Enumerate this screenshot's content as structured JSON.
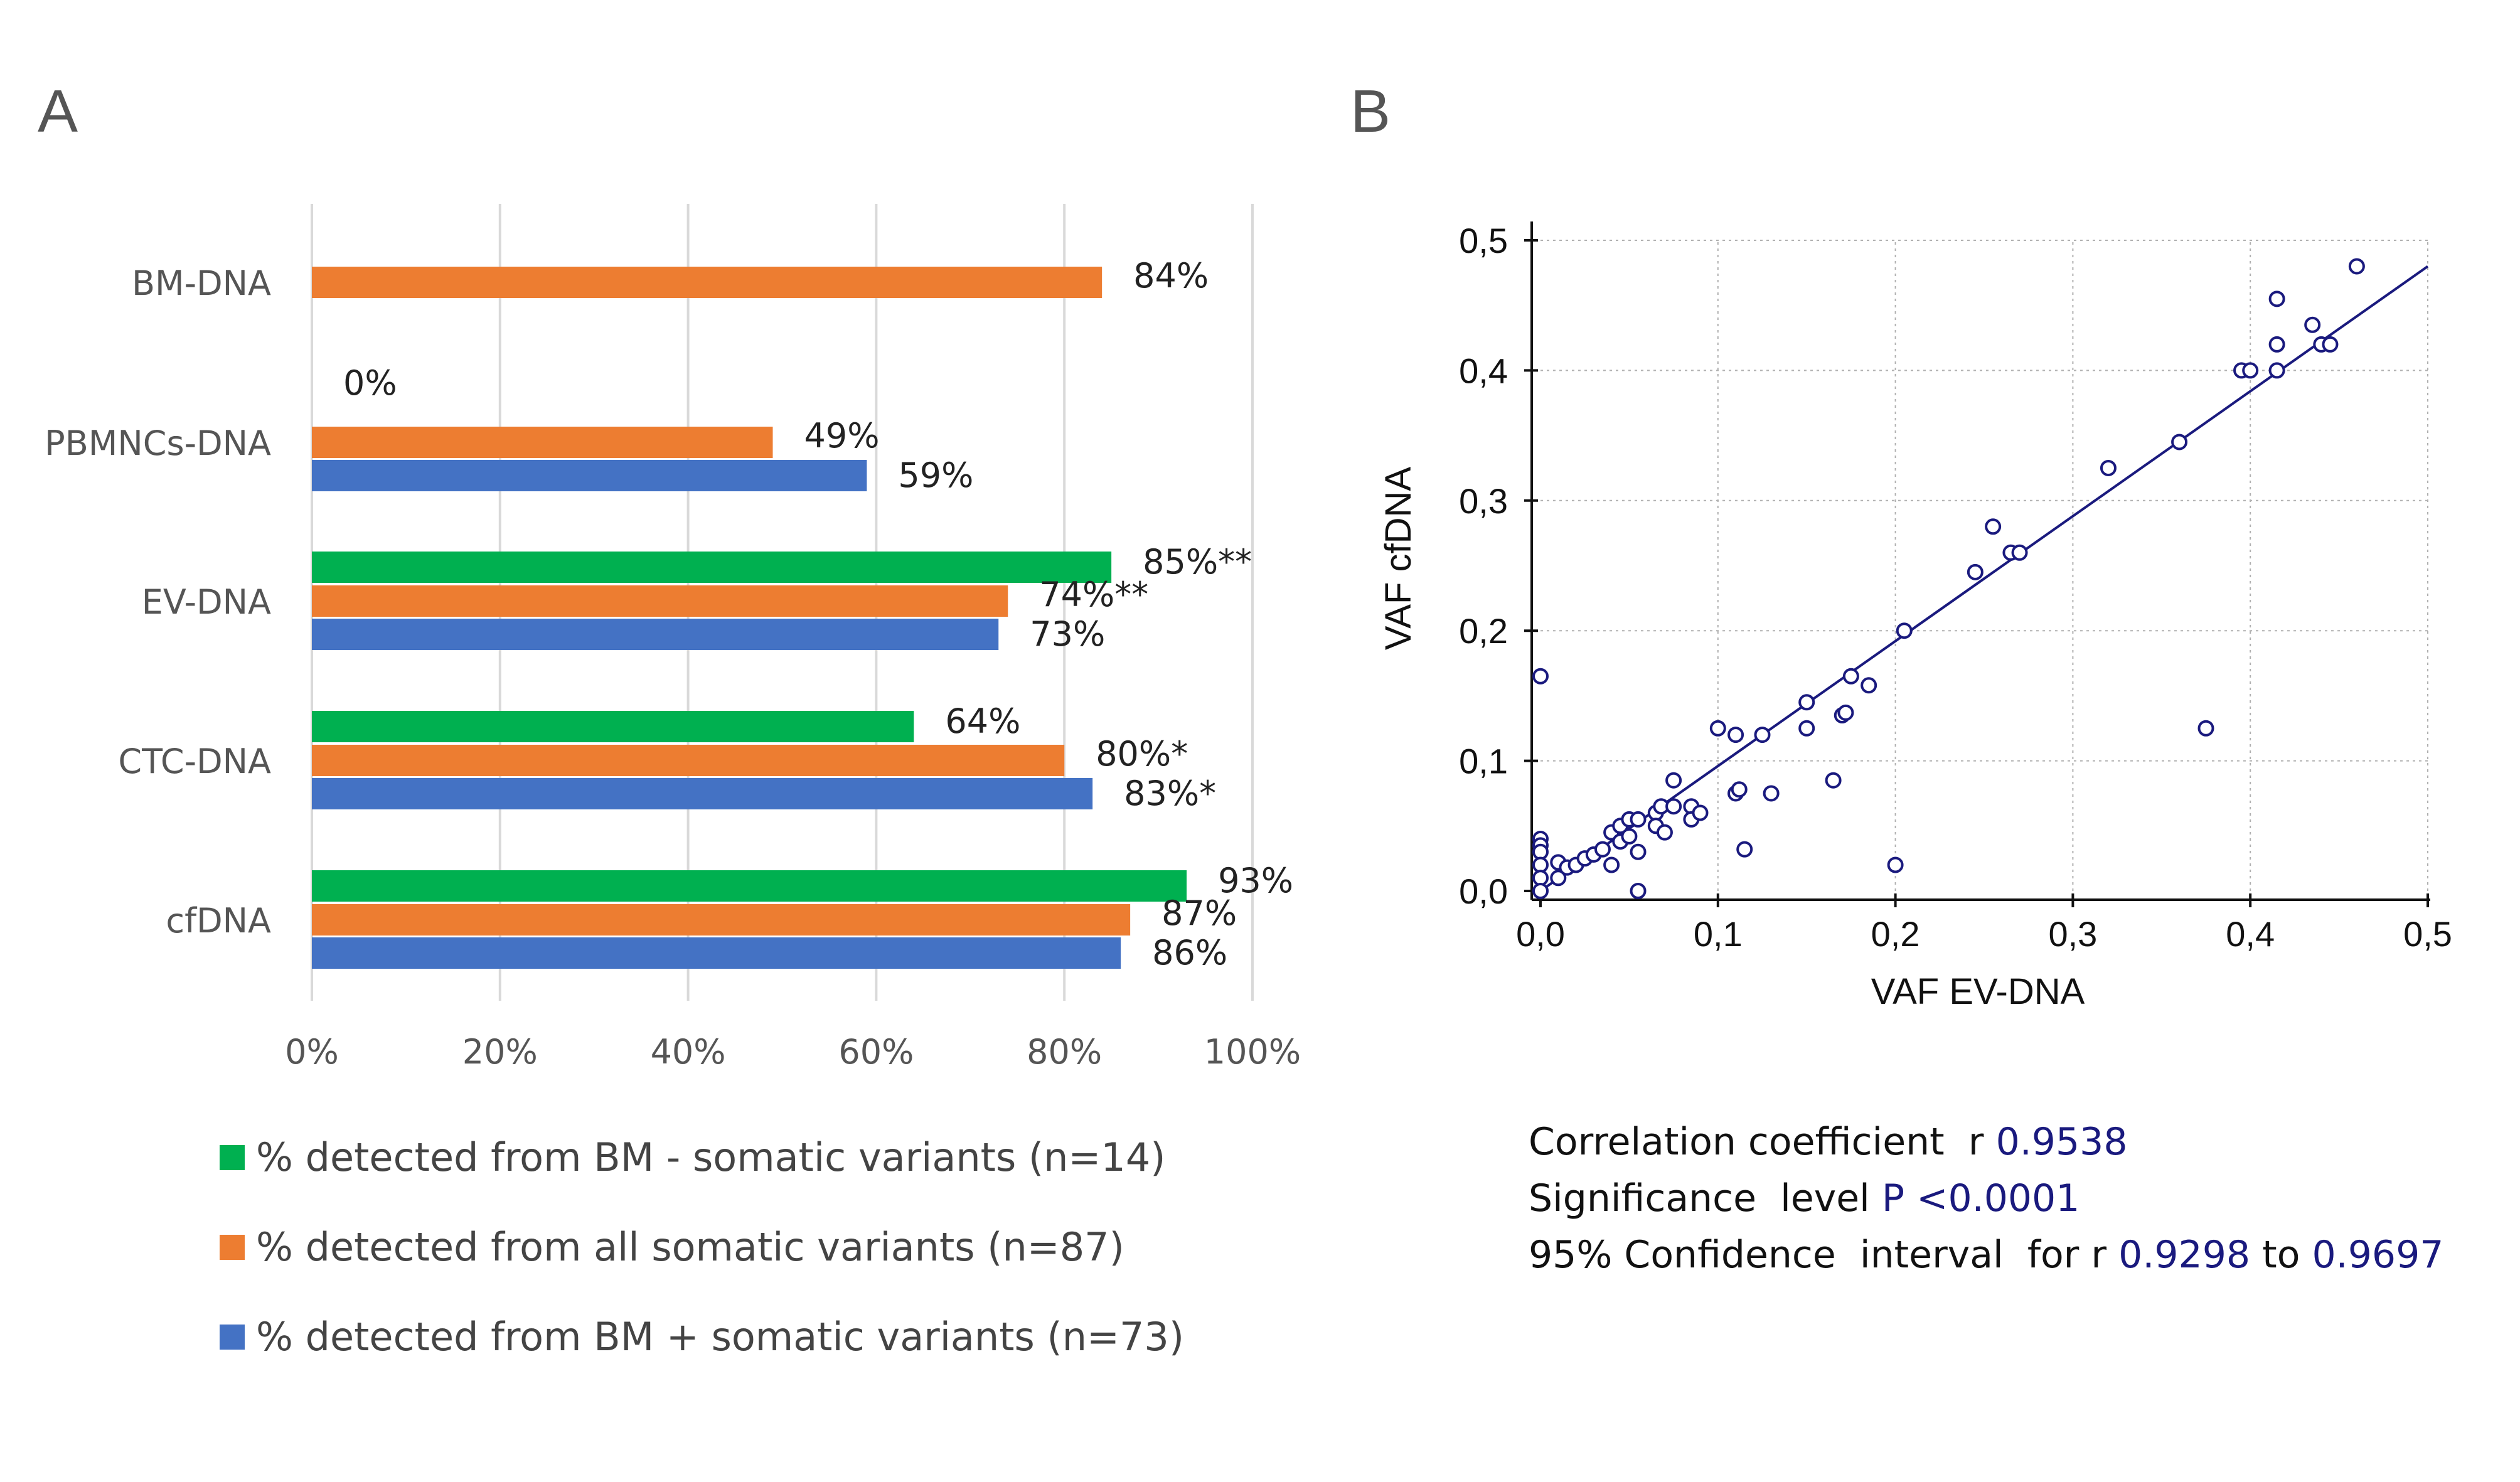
{
  "panels": {
    "a_letter": "A",
    "b_letter": "B"
  },
  "chart_data": [
    {
      "type": "bar",
      "orientation": "horizontal",
      "categories": [
        "BM-DNA",
        "PBMNCs-DNA",
        "EV-DNA",
        "CTC-DNA",
        "cfDNA"
      ],
      "series": [
        {
          "name": "% detected from BM - somatic variants (n=14)",
          "color": "#00b050",
          "values": [
            null,
            0,
            85,
            64,
            93
          ],
          "labels": [
            "",
            "0%",
            "85%**",
            "64%",
            "93%"
          ]
        },
        {
          "name": "% detected from all somatic variants (n=87)",
          "color": "#ed7d31",
          "values": [
            84,
            49,
            74,
            80,
            87
          ],
          "labels": [
            "84%",
            "49%",
            "74%**",
            "80%*",
            "87%"
          ]
        },
        {
          "name": "% detected from BM + somatic variants (n=73)",
          "color": "#4472c4",
          "values": [
            null,
            59,
            73,
            83,
            86
          ],
          "labels": [
            "",
            "59%",
            "73%",
            "83%*",
            "86%"
          ]
        }
      ],
      "x_ticks": [
        "0%",
        "20%",
        "40%",
        "60%",
        "80%",
        "100%"
      ],
      "xlim": [
        0,
        100
      ],
      "grid": true,
      "legend": "bottom"
    },
    {
      "type": "scatter",
      "xlabel": "VAF EV-DNA",
      "ylabel": "VAF cfDNA",
      "xlim": [
        0,
        0.5
      ],
      "ylim": [
        0,
        0.5
      ],
      "x_ticks": [
        "0,0",
        "0,1",
        "0,2",
        "0,3",
        "0,4",
        "0,5"
      ],
      "y_ticks": [
        "0,0",
        "0,1",
        "0,2",
        "0,3",
        "0,4",
        "0,5"
      ],
      "grid": true,
      "marker_color": "#1a1a7e",
      "points": [
        [
          0.0,
          0.165
        ],
        [
          0.0,
          0.04
        ],
        [
          0.0,
          0.035
        ],
        [
          0.0,
          0.03
        ],
        [
          0.0,
          0.02
        ],
        [
          0.0,
          0.01
        ],
        [
          0.0,
          0.0
        ],
        [
          0.01,
          0.022
        ],
        [
          0.01,
          0.01
        ],
        [
          0.015,
          0.018
        ],
        [
          0.02,
          0.02
        ],
        [
          0.025,
          0.025
        ],
        [
          0.03,
          0.028
        ],
        [
          0.035,
          0.032
        ],
        [
          0.04,
          0.045
        ],
        [
          0.04,
          0.02
        ],
        [
          0.045,
          0.038
        ],
        [
          0.045,
          0.05
        ],
        [
          0.05,
          0.055
        ],
        [
          0.05,
          0.042
        ],
        [
          0.055,
          0.055
        ],
        [
          0.055,
          0.03
        ],
        [
          0.055,
          0.0
        ],
        [
          0.065,
          0.06
        ],
        [
          0.065,
          0.05
        ],
        [
          0.068,
          0.065
        ],
        [
          0.07,
          0.045
        ],
        [
          0.075,
          0.065
        ],
        [
          0.075,
          0.085
        ],
        [
          0.085,
          0.065
        ],
        [
          0.085,
          0.055
        ],
        [
          0.09,
          0.06
        ],
        [
          0.1,
          0.125
        ],
        [
          0.11,
          0.12
        ],
        [
          0.11,
          0.075
        ],
        [
          0.112,
          0.078
        ],
        [
          0.115,
          0.032
        ],
        [
          0.125,
          0.12
        ],
        [
          0.13,
          0.075
        ],
        [
          0.15,
          0.125
        ],
        [
          0.15,
          0.145
        ],
        [
          0.165,
          0.085
        ],
        [
          0.17,
          0.135
        ],
        [
          0.172,
          0.137
        ],
        [
          0.175,
          0.165
        ],
        [
          0.185,
          0.158
        ],
        [
          0.2,
          0.02
        ],
        [
          0.205,
          0.2
        ],
        [
          0.245,
          0.245
        ],
        [
          0.255,
          0.28
        ],
        [
          0.265,
          0.26
        ],
        [
          0.27,
          0.26
        ],
        [
          0.32,
          0.325
        ],
        [
          0.36,
          0.345
        ],
        [
          0.375,
          0.125
        ],
        [
          0.395,
          0.4
        ],
        [
          0.4,
          0.4
        ],
        [
          0.415,
          0.4
        ],
        [
          0.415,
          0.42
        ],
        [
          0.415,
          0.455
        ],
        [
          0.435,
          0.435
        ],
        [
          0.44,
          0.42
        ],
        [
          0.445,
          0.42
        ],
        [
          0.46,
          0.48
        ]
      ],
      "regression_line": {
        "x": [
          0.0,
          0.5
        ],
        "y": [
          0.0,
          0.48
        ]
      }
    }
  ],
  "stats": {
    "line1_label": "Correlation coefficient  r ",
    "line1_value": "0.9538",
    "line2_label": "Significance  level ",
    "line2_value": "P <0.0001",
    "line3_label": "95% Confidence  interval  for r ",
    "line3_value_a": "0.9298",
    "line3_mid": " to ",
    "line3_value_b": "0.9697"
  }
}
